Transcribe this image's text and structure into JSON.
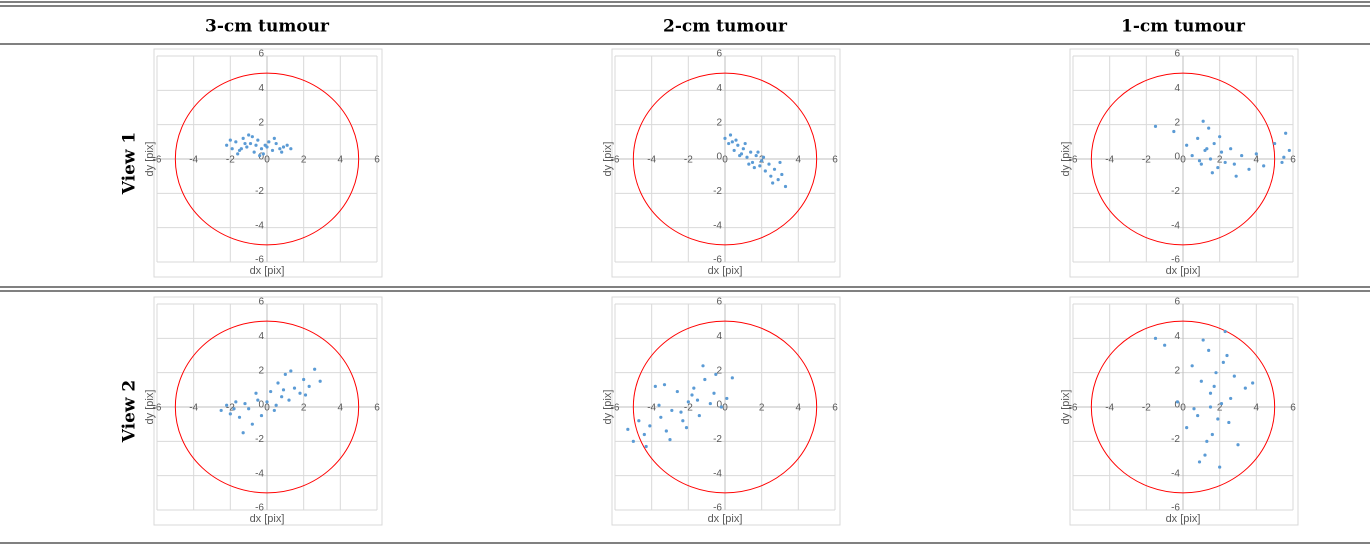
{
  "columns": [
    "3-cm tumour",
    "2-cm tumour",
    "1-cm tumour"
  ],
  "rows": [
    "View 1",
    "View 2"
  ],
  "chart_data": [
    {
      "type": "scatter",
      "xlabel": "dx [pix]",
      "ylabel": "dy [pix]",
      "xlim": [
        -6,
        6
      ],
      "ylim": [
        -6,
        6
      ],
      "xticks": [
        -6,
        -4,
        -2,
        0,
        2,
        4,
        6
      ],
      "yticks": [
        -6,
        -4,
        -2,
        0,
        2,
        4,
        6
      ],
      "grid": true,
      "color": "#5b9bd5",
      "circle_radius": 5,
      "circle_color": "#ff0000",
      "x": [
        -2.2,
        -1.9,
        -1.7,
        -1.5,
        -1.3,
        -1.1,
        -0.9,
        -0.7,
        -0.5,
        -0.3,
        -0.1,
        0.1,
        0.3,
        0.5,
        0.7,
        0.9,
        1.1,
        -2.0,
        -1.6,
        -1.2,
        -0.8,
        -0.4,
        0,
        0.4,
        0.8,
        -1.4,
        -1.0,
        -0.6,
        -0.2,
        1.3
      ],
      "values": [
        0.8,
        0.6,
        1.0,
        0.5,
        1.2,
        0.7,
        0.9,
        0.4,
        1.1,
        0.6,
        0.8,
        1.0,
        0.5,
        0.9,
        0.6,
        0.7,
        0.8,
        1.1,
        0.3,
        0.9,
        1.3,
        0.2,
        0.7,
        1.2,
        0.4,
        0.6,
        1.4,
        0.8,
        0.3,
        0.6
      ]
    },
    {
      "type": "scatter",
      "xlabel": "dx [pix]",
      "ylabel": "dy [pix]",
      "xlim": [
        -6,
        6
      ],
      "ylim": [
        -6,
        6
      ],
      "xticks": [
        -6,
        -4,
        -2,
        0,
        2,
        4,
        6
      ],
      "yticks": [
        -6,
        -4,
        -2,
        0,
        2,
        4,
        6
      ],
      "grid": true,
      "color": "#5b9bd5",
      "circle_radius": 5,
      "circle_color": "#ff0000",
      "x": [
        0,
        0.2,
        0.4,
        0.5,
        0.7,
        0.9,
        1.0,
        1.2,
        1.4,
        1.5,
        1.7,
        1.9,
        2.0,
        2.2,
        2.4,
        2.5,
        2.7,
        2.9,
        3.1,
        3.3,
        0.3,
        0.8,
        1.1,
        1.6,
        2.1,
        2.6,
        3.0,
        0.6,
        1.3,
        1.8
      ],
      "values": [
        1.2,
        0.9,
        1.0,
        0.5,
        0.8,
        0.3,
        0.6,
        0.1,
        0.4,
        -0.2,
        0.2,
        -0.4,
        -0.1,
        -0.7,
        -0.3,
        -1.0,
        -0.6,
        -1.2,
        -0.9,
        -1.6,
        1.4,
        0.2,
        0.9,
        -0.5,
        0.1,
        -1.4,
        -0.2,
        1.1,
        -0.3,
        0.4
      ]
    },
    {
      "type": "scatter",
      "xlabel": "dx [pix]",
      "ylabel": "dy [pix]",
      "xlim": [
        -6,
        6
      ],
      "ylim": [
        -6,
        6
      ],
      "xticks": [
        -6,
        -4,
        -2,
        0,
        2,
        4,
        6
      ],
      "yticks": [
        -6,
        -4,
        -2,
        0,
        2,
        4,
        6
      ],
      "grid": true,
      "color": "#5b9bd5",
      "circle_radius": 5,
      "circle_color": "#ff0000",
      "x": [
        -1.5,
        -0.5,
        0.2,
        0.5,
        0.8,
        1.0,
        1.2,
        1.4,
        1.5,
        1.7,
        1.9,
        2.1,
        2.3,
        2.6,
        2.9,
        3.2,
        3.6,
        4.0,
        4.4,
        5.0,
        5.4,
        5.6,
        5.8,
        1.1,
        1.6,
        2.0,
        0.9,
        1.3,
        2.8,
        5.5
      ],
      "values": [
        1.9,
        1.6,
        0.8,
        0.2,
        1.2,
        -0.3,
        0.5,
        1.8,
        0.0,
        0.9,
        -0.5,
        0.4,
        -0.2,
        0.6,
        -1.0,
        0.2,
        -0.6,
        0.3,
        -0.4,
        0.9,
        -0.2,
        1.5,
        0.5,
        2.2,
        -0.8,
        1.3,
        -0.1,
        0.6,
        -0.3,
        0.1
      ]
    },
    {
      "type": "scatter",
      "xlabel": "dx [pix]",
      "ylabel": "dy [pix]",
      "xlim": [
        -6,
        6
      ],
      "ylim": [
        -6,
        6
      ],
      "xticks": [
        -6,
        -4,
        -2,
        0,
        2,
        4,
        6
      ],
      "yticks": [
        -6,
        -4,
        -2,
        0,
        2,
        4,
        6
      ],
      "grid": true,
      "color": "#5b9bd5",
      "circle_radius": 5,
      "circle_color": "#ff0000",
      "x": [
        -2.5,
        -2.2,
        -2.0,
        -1.7,
        -1.5,
        -1.2,
        -1.0,
        -0.8,
        -0.5,
        -0.3,
        0,
        0.2,
        0.4,
        0.6,
        0.8,
        1.0,
        1.2,
        1.5,
        1.8,
        2.0,
        2.3,
        2.6,
        2.9,
        -1.8,
        -0.6,
        0.5,
        1.3,
        2.1,
        -1.3,
        0.9
      ],
      "values": [
        -0.2,
        0.1,
        -0.4,
        0.3,
        -0.6,
        0.2,
        -0.1,
        -1.0,
        0.4,
        -0.5,
        0.3,
        0.9,
        -0.2,
        1.4,
        0.6,
        1.9,
        0.4,
        1.1,
        0.8,
        1.6,
        1.2,
        2.2,
        1.5,
        -0.1,
        0.8,
        0.1,
        2.1,
        0.7,
        -1.5,
        1.0
      ]
    },
    {
      "type": "scatter",
      "xlabel": "dx [pix]",
      "ylabel": "dy [pix]",
      "xlim": [
        -6,
        6
      ],
      "ylim": [
        -6,
        6
      ],
      "xticks": [
        -6,
        -4,
        -2,
        0,
        2,
        4,
        6
      ],
      "yticks": [
        -6,
        -4,
        -2,
        0,
        2,
        4,
        6
      ],
      "grid": true,
      "color": "#5b9bd5",
      "circle_radius": 5,
      "circle_color": "#ff0000",
      "x": [
        -5.3,
        -5.0,
        -4.7,
        -4.4,
        -4.1,
        -3.8,
        -3.5,
        -3.2,
        -2.9,
        -2.6,
        -2.3,
        -2.0,
        -1.7,
        -1.4,
        -1.1,
        -0.8,
        -0.5,
        -0.2,
        0.1,
        0.4,
        -4.3,
        -3.6,
        -3.0,
        -2.4,
        -1.8,
        -1.2,
        -0.6,
        -3.3,
        -2.1,
        -1.5
      ],
      "values": [
        -1.3,
        -2.0,
        -0.8,
        -1.6,
        -1.1,
        1.2,
        -0.6,
        -1.4,
        -0.2,
        0.9,
        -0.8,
        0.3,
        1.1,
        -0.5,
        1.6,
        0.2,
        1.9,
        0.0,
        0.5,
        1.7,
        -2.3,
        0.1,
        -1.9,
        -0.3,
        0.7,
        2.4,
        0.8,
        1.3,
        -1.2,
        0.4
      ]
    },
    {
      "type": "scatter",
      "xlabel": "dx [pix]",
      "ylabel": "dy [pix]",
      "xlim": [
        -6,
        6
      ],
      "ylim": [
        -6,
        6
      ],
      "xticks": [
        -6,
        -4,
        -2,
        0,
        2,
        4,
        6
      ],
      "yticks": [
        -6,
        -4,
        -2,
        0,
        2,
        4,
        6
      ],
      "grid": true,
      "color": "#5b9bd5",
      "circle_radius": 5,
      "circle_color": "#ff0000",
      "x": [
        -1.5,
        -1.0,
        -0.3,
        0.2,
        0.5,
        0.8,
        1.0,
        1.2,
        1.4,
        1.5,
        1.6,
        1.8,
        2.0,
        2.1,
        2.3,
        2.5,
        2.8,
        3.0,
        3.4,
        3.8,
        0.6,
        1.1,
        1.3,
        1.7,
        1.9,
        2.2,
        2.6,
        0.9,
        1.5,
        2.4
      ],
      "values": [
        4.0,
        3.6,
        0.3,
        -1.2,
        2.4,
        -0.5,
        1.5,
        -2.8,
        3.3,
        0.8,
        -1.6,
        2.0,
        -3.5,
        0.2,
        4.4,
        -0.9,
        1.8,
        -2.2,
        1.1,
        1.4,
        -0.1,
        3.9,
        -2.0,
        1.2,
        -0.7,
        2.6,
        0.5,
        -3.2,
        0.0,
        3.0
      ]
    }
  ]
}
